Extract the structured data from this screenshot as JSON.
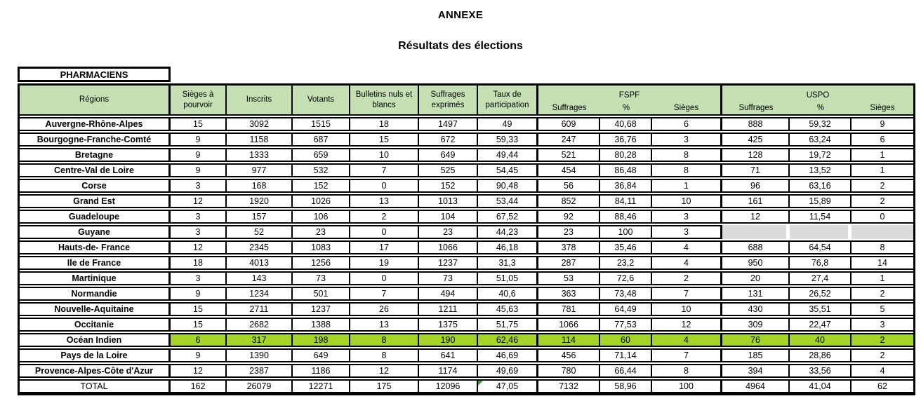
{
  "page": {
    "title1": "ANNEXE",
    "title2": "Résultats des élections",
    "corps_label": "PHARMACIENS"
  },
  "colors": {
    "header_bg": "#C6E0B4",
    "highlight": "#A4D528",
    "empty_gray": "#DCDCDC",
    "note_marker": "#2FA12F"
  },
  "header": {
    "regions": "Régions",
    "columns": [
      "Sièges à pourvoir",
      "Inscrits",
      "Votants",
      "Bulletins nuls et blancs",
      "Suffrages exprimés",
      "Taux de participation"
    ],
    "fspf": {
      "title": "FSPF",
      "sub": [
        "Suffrages",
        "%",
        "Sièges"
      ]
    },
    "uspo": {
      "title": "USPO",
      "sub": [
        "Suffrages",
        "%",
        "Sièges"
      ]
    }
  },
  "table": {
    "value_columns": [
      "Sièges à pourvoir",
      "Inscrits",
      "Votants",
      "Bulletins nuls et blancs",
      "Suffrages exprimés",
      "Taux de participation",
      "FSPF Suffrages",
      "FSPF %",
      "FSPF Sièges",
      "USPO Suffrages",
      "USPO %",
      "USPO Sièges"
    ],
    "rows": [
      {
        "region": "Auvergne-Rhône-Alpes",
        "values": [
          "15",
          "3092",
          "1515",
          "18",
          "1497",
          "49",
          "609",
          "40,68",
          "6",
          "888",
          "59,32",
          "9"
        ]
      },
      {
        "region": "Bourgogne-Franche-Comté",
        "values": [
          "9",
          "1158",
          "687",
          "15",
          "672",
          "59,33",
          "247",
          "36,76",
          "3",
          "425",
          "63,24",
          "6"
        ]
      },
      {
        "region": "Bretagne",
        "values": [
          "9",
          "1333",
          "659",
          "10",
          "649",
          "49,44",
          "521",
          "80,28",
          "8",
          "128",
          "19,72",
          "1"
        ]
      },
      {
        "region": "Centre-Val de Loire",
        "values": [
          "9",
          "977",
          "532",
          "7",
          "525",
          "54,45",
          "454",
          "86,48",
          "8",
          "71",
          "13,52",
          "1"
        ]
      },
      {
        "region": "Corse",
        "values": [
          "3",
          "168",
          "152",
          "0",
          "152",
          "90,48",
          "56",
          "36,84",
          "1",
          "96",
          "63,16",
          "2"
        ]
      },
      {
        "region": "Grand Est",
        "values": [
          "12",
          "1920",
          "1026",
          "13",
          "1013",
          "53,44",
          "852",
          "84,11",
          "10",
          "161",
          "15,89",
          "2"
        ]
      },
      {
        "region": "Guadeloupe",
        "values": [
          "3",
          "157",
          "106",
          "2",
          "104",
          "67,52",
          "92",
          "88,46",
          "3",
          "12",
          "11,54",
          "0"
        ]
      },
      {
        "region": "Guyane",
        "values": [
          "3",
          "52",
          "23",
          "0",
          "23",
          "44,23",
          "23",
          "100",
          "3",
          "",
          "",
          ""
        ],
        "gray_uspo": true
      },
      {
        "region": "Hauts-de- France",
        "values": [
          "12",
          "2345",
          "1083",
          "17",
          "1066",
          "46,18",
          "378",
          "35,46",
          "4",
          "688",
          "64,54",
          "8"
        ]
      },
      {
        "region": "Ile de France",
        "values": [
          "18",
          "4013",
          "1256",
          "19",
          "1237",
          "31,3",
          "287",
          "23,2",
          "4",
          "950",
          "76,8",
          "14"
        ]
      },
      {
        "region": "Martinique",
        "values": [
          "3",
          "143",
          "73",
          "0",
          "73",
          "51,05",
          "53",
          "72,6",
          "2",
          "20",
          "27,4",
          "1"
        ]
      },
      {
        "region": "Normandie",
        "values": [
          "9",
          "1234",
          "501",
          "7",
          "494",
          "40,6",
          "363",
          "73,48",
          "7",
          "131",
          "26,52",
          "2"
        ]
      },
      {
        "region": "Nouvelle-Aquitaine",
        "values": [
          "15",
          "2711",
          "1237",
          "26",
          "1211",
          "45,63",
          "781",
          "64,49",
          "10",
          "430",
          "35,51",
          "5"
        ]
      },
      {
        "region": "Occitanie",
        "values": [
          "15",
          "2682",
          "1388",
          "13",
          "1375",
          "51,75",
          "1066",
          "77,53",
          "12",
          "309",
          "22,47",
          "3"
        ]
      },
      {
        "region": "Océan Indien",
        "values": [
          "6",
          "317",
          "198",
          "8",
          "190",
          "62,46",
          "114",
          "60",
          "4",
          "76",
          "40",
          "2"
        ],
        "highlight": true
      },
      {
        "region": "Pays de la Loire",
        "values": [
          "9",
          "1390",
          "649",
          "8",
          "641",
          "46,69",
          "456",
          "71,14",
          "7",
          "185",
          "28,86",
          "2"
        ]
      },
      {
        "region": "Provence-Alpes-Côte d'Azur",
        "values": [
          "12",
          "2387",
          "1186",
          "12",
          "1174",
          "49,69",
          "780",
          "66,44",
          "8",
          "394",
          "33,56",
          "4"
        ]
      },
      {
        "region": "TOTAL",
        "values": [
          "162",
          "26079",
          "12271",
          "175",
          "12096",
          "47,05",
          "7132",
          "58,96",
          "100",
          "4964",
          "41,04",
          "62"
        ],
        "total": true,
        "triangle_cell": 5
      }
    ]
  }
}
